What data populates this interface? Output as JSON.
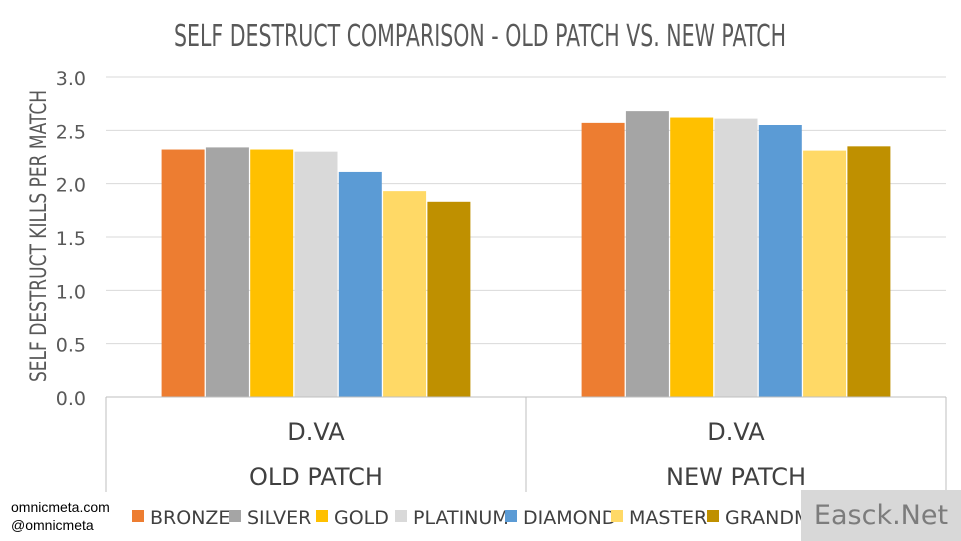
{
  "chart_data": {
    "type": "bar",
    "title": "SELF DESTRUCT COMPARISON - OLD PATCH VS. NEW PATCH",
    "ylabel": "SELF DESTRUCT KILLS PER MATCH",
    "ylim": [
      0,
      3.0
    ],
    "yticks": [
      "0.0",
      "0.5",
      "1.0",
      "1.5",
      "2.0",
      "2.5",
      "3.0"
    ],
    "grid": true,
    "legend_position": "bottom",
    "groups": [
      {
        "hero": "D.VA",
        "patch": "OLD PATCH"
      },
      {
        "hero": "D.VA",
        "patch": "NEW PATCH"
      }
    ],
    "series": [
      {
        "name": "BRONZE",
        "color": "#ed7d31",
        "values": [
          2.32,
          2.57
        ]
      },
      {
        "name": "SILVER",
        "color": "#a5a5a5",
        "values": [
          2.34,
          2.68
        ]
      },
      {
        "name": "GOLD",
        "color": "#ffc000",
        "values": [
          2.32,
          2.62
        ]
      },
      {
        "name": "PLATINUM",
        "color": "#d9d9d9",
        "values": [
          2.3,
          2.61
        ]
      },
      {
        "name": "DIAMOND",
        "color": "#5b9bd5",
        "values": [
          2.11,
          2.55
        ]
      },
      {
        "name": "MASTER",
        "color": "#ffd966",
        "values": [
          1.93,
          2.31
        ]
      },
      {
        "name": "GRANDMAS",
        "color": "#bf9000",
        "values": [
          1.83,
          2.35
        ]
      }
    ]
  },
  "credits": {
    "line1": "omnicmeta.com",
    "line2": "@omnicmeta"
  },
  "watermark": "Easck.Net"
}
